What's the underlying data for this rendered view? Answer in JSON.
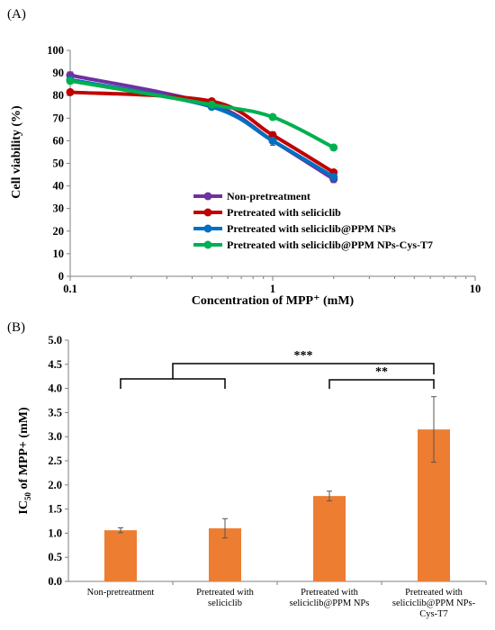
{
  "chart_data": [
    {
      "panel": "(A)",
      "type": "line",
      "xscale": "log",
      "xlim": [
        0.1,
        10
      ],
      "ylim": [
        0,
        100
      ],
      "x_ticks": [
        "0.1",
        "1",
        "10"
      ],
      "y_ticks": [
        "0",
        "10",
        "20",
        "30",
        "40",
        "50",
        "60",
        "70",
        "80",
        "90",
        "100"
      ],
      "xlabel": "Concentration of MPP⁺ (mM)",
      "ylabel": "Cell viability (%)",
      "legend_position": "bottom-right",
      "x": [
        0.1,
        0.5,
        1,
        2
      ],
      "series": [
        {
          "name": "Non-pretreatment",
          "color": "#7030A0",
          "values": [
            89,
            76,
            60,
            43
          ],
          "errors": [
            1.5,
            1.5,
            2,
            1.5
          ]
        },
        {
          "name": "Pretreated with seliciclib",
          "color": "#C00000",
          "values": [
            81.5,
            77.5,
            62.5,
            46
          ],
          "errors": [
            1,
            1,
            1.5,
            1
          ]
        },
        {
          "name": "Pretreated with seliciclib@PPM NPs",
          "color": "#0070C0",
          "values": [
            87,
            75,
            60,
            44
          ],
          "errors": [
            1,
            1,
            1,
            1
          ]
        },
        {
          "name": "Pretreated with seliciclib@PPM NPs-Cys-T7",
          "color": "#00B050",
          "values": [
            86.5,
            76,
            70.5,
            57
          ],
          "errors": [
            1,
            1,
            1,
            1
          ]
        }
      ]
    },
    {
      "panel": "(B)",
      "type": "bar",
      "ylim": [
        0,
        5
      ],
      "y_ticks": [
        "0.0",
        "0.5",
        "1.0",
        "1.5",
        "2.0",
        "2.5",
        "3.0",
        "3.5",
        "4.0",
        "4.5",
        "5.0"
      ],
      "ylabel_main": "IC",
      "ylabel_sub": "50",
      "ylabel_rest": " of MPP+  (mM)",
      "bar_color": "#ED7D31",
      "categories": [
        [
          "Non-pretreatment"
        ],
        [
          "Pretreated with",
          "seliciclib"
        ],
        [
          "Pretreated with",
          "seliciclib@PPM NPs"
        ],
        [
          "Pretreated with",
          "seliciclib@PPM NPs-",
          "Cys-T7"
        ]
      ],
      "values": [
        1.06,
        1.1,
        1.77,
        3.15
      ],
      "errors": [
        0.05,
        0.2,
        0.1,
        0.68
      ],
      "significance": [
        {
          "label": "***",
          "from": [
            0,
            1
          ],
          "to": 3
        },
        {
          "label": "**",
          "from": [
            2
          ],
          "to": 3
        }
      ]
    }
  ]
}
